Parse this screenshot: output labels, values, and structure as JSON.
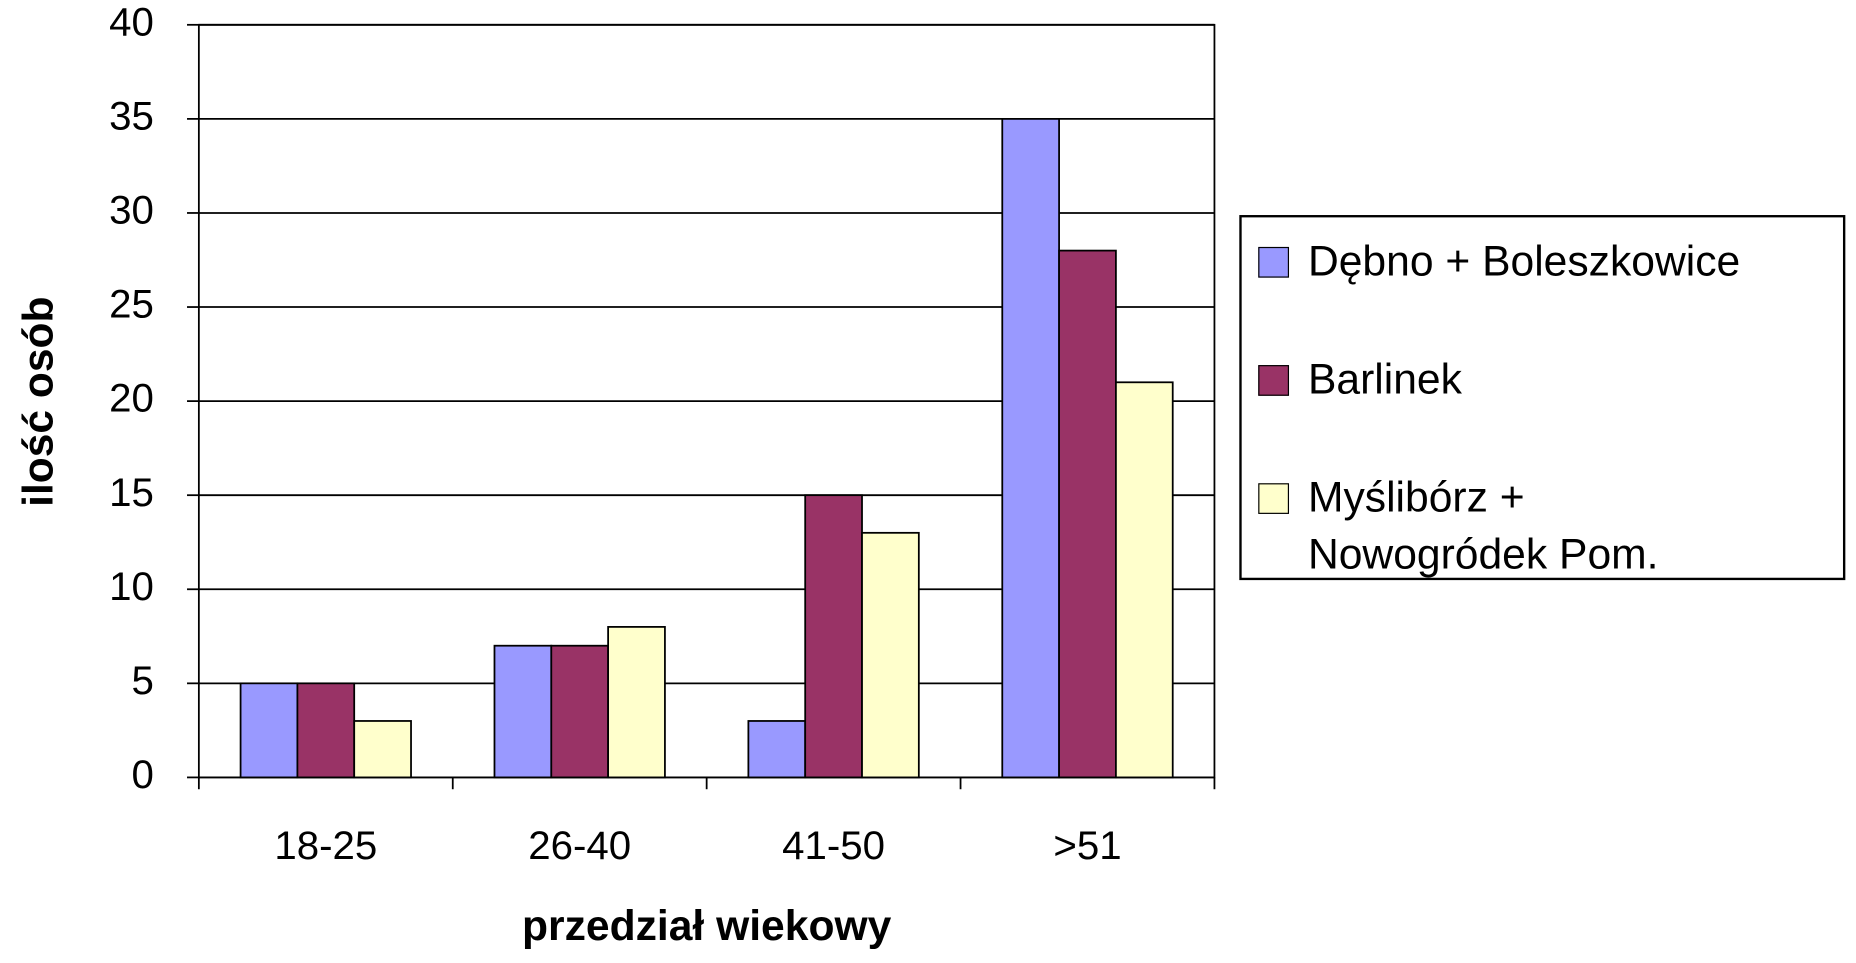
{
  "chart_data": {
    "type": "bar",
    "x_label": "przedział wiekowy",
    "y_label": "ilość osób",
    "categories": [
      "18-25",
      "26-40",
      "41-50",
      ">51"
    ],
    "series": [
      {
        "name": "Dębno + Boleszkowice",
        "color": "#9999ff",
        "values": [
          5,
          7,
          3,
          35
        ]
      },
      {
        "name": "Barlinek",
        "color": "#993366",
        "values": [
          5,
          7,
          15,
          28
        ]
      },
      {
        "name": "Myślibórz + Nowogródek Pom.",
        "color": "#ffffcc",
        "values": [
          3,
          8,
          13,
          21
        ]
      }
    ],
    "ylim": [
      0,
      40
    ],
    "yticks": [
      0,
      5,
      10,
      15,
      20,
      25,
      30,
      35,
      40
    ],
    "grid": true,
    "legend": "right"
  }
}
